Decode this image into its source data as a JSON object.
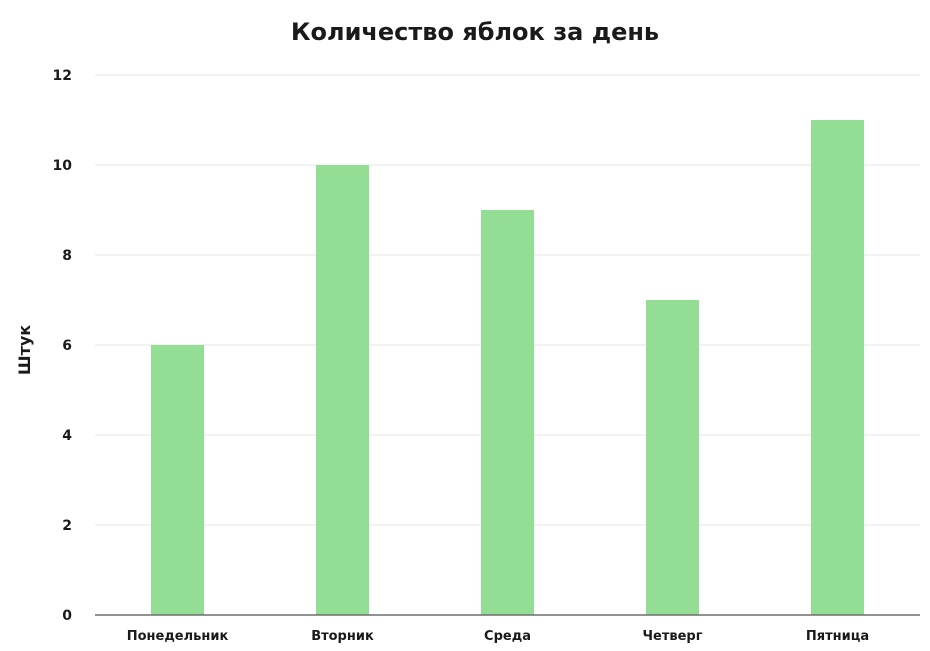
{
  "chart_data": {
    "type": "bar",
    "title": "Количество яблок за день",
    "xlabel": "",
    "ylabel": "Штук",
    "categories": [
      "Понедельник",
      "Вторник",
      "Среда",
      "Четверг",
      "Пятница"
    ],
    "values": [
      6,
      10,
      9,
      7,
      11
    ],
    "ylim": [
      0,
      12
    ],
    "yticks": [
      0,
      2,
      4,
      6,
      8,
      10,
      12
    ],
    "grid": true,
    "legend": "none",
    "bar_color": "#93dd95"
  }
}
